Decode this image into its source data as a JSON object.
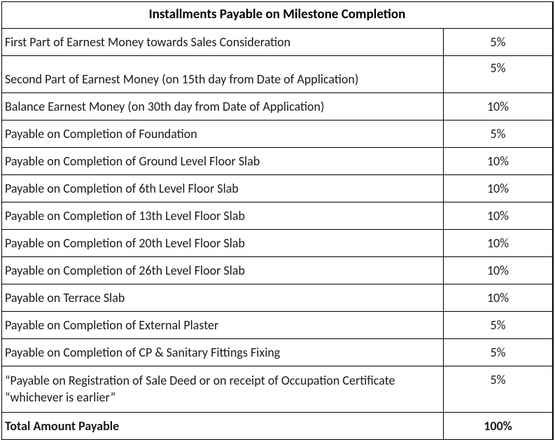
{
  "table": {
    "title": "Installments Payable on Milestone Completion",
    "title_fontsize": 19,
    "title_fontweight": "bold",
    "body_fontsize": 18,
    "border_color": "#000000",
    "background_color": "#ffffff",
    "text_color": "#1a1a1a",
    "column_widths": {
      "description": "auto",
      "percentage": 155
    },
    "rows": [
      {
        "description": "First Part of Earnest Money  towards Sales Consideration",
        "percentage": "5%",
        "tall": false,
        "multiline": false
      },
      {
        "description": "Second Part of Earnest Money  (on 15th day from Date of Application)",
        "percentage": "5%",
        "tall": true,
        "multiline": false
      },
      {
        "description": "Balance Earnest Money  (on 30th day from Date of Application)",
        "percentage": "10%",
        "tall": false,
        "multiline": false
      },
      {
        "description": "Payable on Completion of Foundation",
        "percentage": "5%",
        "tall": false,
        "multiline": false
      },
      {
        "description": "Payable on Completion of Ground Level Floor Slab",
        "percentage": "10%",
        "tall": false,
        "multiline": false
      },
      {
        "description": "Payable on Completion of 6th Level Floor Slab",
        "percentage": "10%",
        "tall": false,
        "multiline": false
      },
      {
        "description": "Payable on Completion of 13th Level Floor Slab",
        "percentage": "10%",
        "tall": false,
        "multiline": false
      },
      {
        "description": "Payable on Completion of 20th Level Floor Slab",
        "percentage": "10%",
        "tall": false,
        "multiline": false
      },
      {
        "description": "Payable on Completion of 26th Level Floor Slab",
        "percentage": "10%",
        "tall": false,
        "multiline": false
      },
      {
        "description": "Payable on Terrace Slab",
        "percentage": "10%",
        "tall": false,
        "multiline": false
      },
      {
        "description": "Payable on Completion of External Plaster",
        "percentage": "5%",
        "tall": false,
        "multiline": false
      },
      {
        "description": "Payable on Completion of CP & Sanitary Fittings Fixing",
        "percentage": "5%",
        "tall": false,
        "multiline": false
      },
      {
        "description": "“Payable on Registration of Sale Deed or on receipt of Occupation Certificate “whichever is earlier”",
        "percentage": "5%",
        "tall": false,
        "multiline": true
      }
    ],
    "total": {
      "description": "Total Amount Payable",
      "percentage": "100%"
    }
  }
}
